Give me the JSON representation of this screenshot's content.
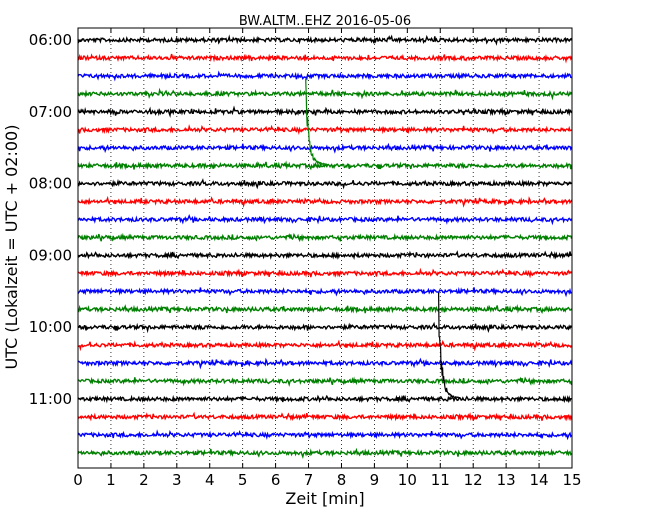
{
  "chart_data": {
    "type": "line",
    "title": "BW.ALTM..EHZ 2016-05-06",
    "xlabel": "Zeit  [min]",
    "ylabel": "UTC (Lokalzeit = UTC + 02:00)",
    "xlim": [
      0,
      15
    ],
    "x_ticks": [
      "0",
      "1",
      "2",
      "3",
      "4",
      "5",
      "6",
      "7",
      "8",
      "9",
      "10",
      "11",
      "12",
      "13",
      "14",
      "15"
    ],
    "y_ticks": [
      "06:00",
      "07:00",
      "08:00",
      "09:00",
      "10:00",
      "11:00"
    ],
    "grid": "x-dotted",
    "row_colors": [
      "#000000",
      "#ff0000",
      "#0000ff",
      "#008000"
    ],
    "rows": [
      {
        "start": "06:00",
        "color": "#000000"
      },
      {
        "start": "06:15",
        "color": "#ff0000"
      },
      {
        "start": "06:30",
        "color": "#0000ff"
      },
      {
        "start": "06:45",
        "color": "#008000"
      },
      {
        "start": "07:00",
        "color": "#000000"
      },
      {
        "start": "07:15",
        "color": "#ff0000"
      },
      {
        "start": "07:30",
        "color": "#0000ff"
      },
      {
        "start": "07:45",
        "color": "#008000"
      },
      {
        "start": "08:00",
        "color": "#000000"
      },
      {
        "start": "08:15",
        "color": "#ff0000"
      },
      {
        "start": "08:30",
        "color": "#0000ff"
      },
      {
        "start": "08:45",
        "color": "#008000"
      },
      {
        "start": "09:00",
        "color": "#000000"
      },
      {
        "start": "09:15",
        "color": "#ff0000"
      },
      {
        "start": "09:30",
        "color": "#0000ff"
      },
      {
        "start": "09:45",
        "color": "#008000"
      },
      {
        "start": "10:00",
        "color": "#000000"
      },
      {
        "start": "10:15",
        "color": "#ff0000"
      },
      {
        "start": "10:30",
        "color": "#0000ff"
      },
      {
        "start": "10:45",
        "color": "#008000"
      },
      {
        "start": "11:00",
        "color": "#000000"
      },
      {
        "start": "11:15",
        "color": "#ff0000"
      },
      {
        "start": "11:30",
        "color": "#0000ff"
      },
      {
        "start": "11:45",
        "color": "#008000"
      }
    ],
    "events": [
      {
        "row_start": "07:45",
        "onset_min": 6.9,
        "color": "#008000"
      },
      {
        "row_start": "11:00",
        "onset_min": 10.95,
        "color": "#000000"
      }
    ]
  }
}
